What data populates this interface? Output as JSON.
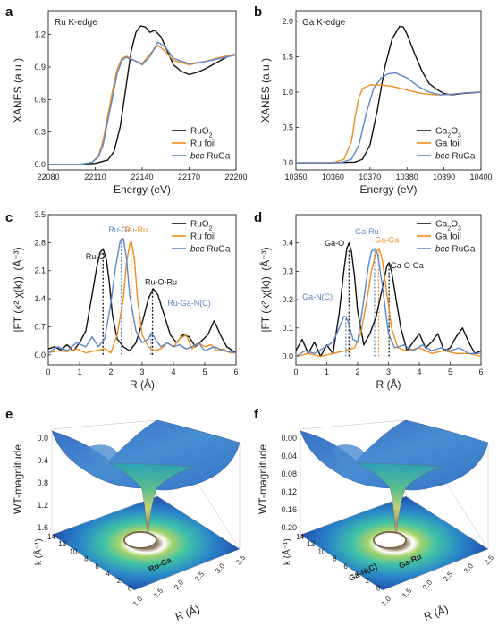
{
  "panels": {
    "a": "a",
    "b": "b",
    "c": "c",
    "d": "d",
    "e": "e",
    "f": "f"
  },
  "colors": {
    "ref": "#111111",
    "foil": "#f28c1e",
    "rugapos": "#5b86c8"
  },
  "chart_data": [
    {
      "id": "a",
      "type": "line",
      "annotation": "Ru K-edge",
      "xlabel": "Energy (eV)",
      "ylabel": "XANES (a.u.)",
      "xlim": [
        22080,
        22200
      ],
      "ylim": [
        -0.05,
        1.42
      ],
      "xticks": [
        22080,
        22110,
        22140,
        22170,
        22200
      ],
      "yticks": [
        0.0,
        0.3,
        0.6,
        0.9,
        1.2
      ],
      "ytick_labels": [
        "0.0",
        "0.3",
        "0.6",
        "0.9",
        "1.2"
      ],
      "legend": [
        "RuO2",
        "Ru foil",
        "bcc RuGa"
      ],
      "series": [
        {
          "name": "RuO2",
          "color": "ref",
          "x": [
            22080,
            22100,
            22110,
            22118,
            22122,
            22126,
            22130,
            22133,
            22136,
            22139,
            22142,
            22145,
            22148,
            22152,
            22156,
            22160,
            22165,
            22170,
            22175,
            22180,
            22185,
            22190,
            22195,
            22200
          ],
          "y": [
            0.0,
            0.0,
            0.01,
            0.04,
            0.12,
            0.35,
            0.75,
            1.05,
            1.22,
            1.28,
            1.27,
            1.22,
            1.24,
            1.18,
            1.05,
            0.92,
            0.86,
            0.83,
            0.85,
            0.88,
            0.92,
            0.96,
            1.0,
            1.02
          ]
        },
        {
          "name": "Ru foil",
          "color": "foil",
          "x": [
            22080,
            22100,
            22108,
            22112,
            22115,
            22118,
            22121,
            22124,
            22127,
            22130,
            22135,
            22140,
            22145,
            22150,
            22155,
            22160,
            22170,
            22180,
            22190,
            22200
          ],
          "y": [
            0.0,
            0.0,
            0.02,
            0.08,
            0.22,
            0.45,
            0.68,
            0.88,
            0.98,
            1.0,
            0.96,
            0.93,
            1.02,
            1.1,
            1.04,
            0.96,
            0.92,
            0.95,
            0.99,
            1.02
          ]
        },
        {
          "name": "bcc RuGa",
          "color": "rugapos",
          "x": [
            22080,
            22100,
            22108,
            22112,
            22115,
            22118,
            22121,
            22124,
            22127,
            22130,
            22135,
            22140,
            22145,
            22150,
            22155,
            22160,
            22170,
            22180,
            22190,
            22200
          ],
          "y": [
            0.0,
            0.0,
            0.02,
            0.07,
            0.18,
            0.4,
            0.62,
            0.84,
            0.96,
            0.99,
            0.96,
            0.92,
            1.0,
            1.13,
            1.08,
            0.98,
            0.93,
            0.95,
            0.98,
            1.01
          ]
        }
      ]
    },
    {
      "id": "b",
      "type": "line",
      "annotation": "Ga K-edge",
      "xlabel": "Energy (eV)",
      "ylabel": "XANES (a.u.)",
      "xlim": [
        10350,
        10400
      ],
      "ylim": [
        -0.1,
        2.15
      ],
      "xticks": [
        10350,
        10360,
        10370,
        10380,
        10390,
        10400
      ],
      "yticks": [
        0.0,
        0.5,
        1.0,
        1.5,
        2.0
      ],
      "ytick_labels": [
        "0.0",
        "0.5",
        "1.0",
        "1.5",
        "2.0"
      ],
      "legend": [
        "Ga2O3",
        "Ga foil",
        "bcc RuGa"
      ],
      "series": [
        {
          "name": "Ga2O3",
          "color": "ref",
          "x": [
            10350,
            10360,
            10366,
            10368,
            10370,
            10372,
            10374,
            10376,
            10378,
            10379,
            10380,
            10382,
            10384,
            10386,
            10388,
            10390,
            10392,
            10395,
            10400
          ],
          "y": [
            0.0,
            0.0,
            0.01,
            0.05,
            0.25,
            0.75,
            1.35,
            1.75,
            1.93,
            1.92,
            1.82,
            1.55,
            1.3,
            1.12,
            1.04,
            0.98,
            0.96,
            0.98,
            1.0
          ]
        },
        {
          "name": "Ga foil",
          "color": "foil",
          "x": [
            10350,
            10360,
            10363,
            10365,
            10366,
            10367,
            10368,
            10370,
            10373,
            10376,
            10380,
            10384,
            10388,
            10392,
            10396,
            10400
          ],
          "y": [
            0.0,
            0.0,
            0.05,
            0.3,
            0.65,
            0.92,
            1.05,
            1.1,
            1.1,
            1.08,
            1.03,
            0.98,
            0.96,
            0.97,
            0.99,
            1.0
          ]
        },
        {
          "name": "bcc RuGa",
          "color": "rugapos",
          "x": [
            10350,
            10362,
            10365,
            10367,
            10369,
            10371,
            10373,
            10375,
            10377,
            10380,
            10383,
            10386,
            10389,
            10392,
            10396,
            10400
          ],
          "y": [
            0.0,
            0.0,
            0.05,
            0.25,
            0.7,
            1.05,
            1.2,
            1.26,
            1.27,
            1.2,
            1.08,
            1.0,
            0.96,
            0.97,
            0.99,
            1.0
          ]
        }
      ]
    },
    {
      "id": "c",
      "type": "line",
      "xlabel": "R (Å)",
      "ylabel": "|FT (k² χ(k))| (Å⁻³)",
      "xlim": [
        0,
        6
      ],
      "ylim": [
        -0.25,
        3.5
      ],
      "xticks": [
        0,
        1,
        2,
        3,
        4,
        5,
        6
      ],
      "yticks": [
        0.0,
        0.7,
        1.4,
        2.1,
        2.8,
        3.5
      ],
      "ytick_labels": [
        "0.0",
        "0.7",
        "1.4",
        "2.1",
        "2.8",
        "3.5"
      ],
      "legend": [
        "RuO2",
        "Ru foil",
        "bcc RuGa"
      ],
      "vlines": [
        {
          "x": 1.75,
          "color": "ref",
          "y": 2.6
        },
        {
          "x": 2.33,
          "color": "rugapos",
          "y": 2.9
        },
        {
          "x": 2.65,
          "color": "foil",
          "y": 2.85
        },
        {
          "x": 3.33,
          "color": "ref",
          "y": 1.65
        },
        {
          "x": 3.28,
          "color": "rugapos",
          "y": 0.55
        }
      ],
      "annotations": [
        {
          "text": "Ru-O",
          "x": 1.5,
          "y": 2.38,
          "color": "ref"
        },
        {
          "text": "Ru-Ga",
          "x": 2.3,
          "y": 3.05,
          "color": "rugapos"
        },
        {
          "text": "Ru-Ru",
          "x": 2.8,
          "y": 3.05,
          "color": "foil"
        },
        {
          "text": "Ru-O-Ru",
          "x": 3.6,
          "y": 1.75,
          "color": "ref"
        },
        {
          "text": "Ru-Ga-N(C)",
          "x": 4.5,
          "y": 1.22,
          "color": "rugapos"
        }
      ],
      "series": [
        {
          "name": "RuO2",
          "color": "ref",
          "x": [
            0,
            0.2,
            0.4,
            0.6,
            0.8,
            1.0,
            1.2,
            1.4,
            1.55,
            1.65,
            1.75,
            1.85,
            1.95,
            2.05,
            2.2,
            2.4,
            2.6,
            2.8,
            3.0,
            3.2,
            3.35,
            3.5,
            3.7,
            3.9,
            4.1,
            4.3,
            4.5,
            4.7,
            4.9,
            5.1,
            5.3,
            5.5,
            5.7,
            5.9,
            6.0
          ],
          "y": [
            0.15,
            0.2,
            0.12,
            0.25,
            0.1,
            0.3,
            0.6,
            1.5,
            2.2,
            2.55,
            2.65,
            2.4,
            1.8,
            1.0,
            0.4,
            0.2,
            0.1,
            0.3,
            0.8,
            1.4,
            1.65,
            1.5,
            1.0,
            0.5,
            0.3,
            0.5,
            0.45,
            0.2,
            0.35,
            0.5,
            0.85,
            0.5,
            0.2,
            0.1,
            0.05
          ]
        },
        {
          "name": "Ru foil",
          "color": "foil",
          "x": [
            0,
            0.3,
            0.6,
            0.9,
            1.2,
            1.5,
            1.8,
            2.0,
            2.2,
            2.4,
            2.5,
            2.6,
            2.65,
            2.75,
            2.85,
            3.0,
            3.2,
            3.4,
            3.6,
            3.8,
            4.0,
            4.2,
            4.4,
            4.6,
            4.8,
            5.0,
            5.2,
            5.4,
            5.6,
            5.8,
            6.0
          ],
          "y": [
            0.05,
            0.1,
            0.08,
            0.15,
            0.05,
            0.1,
            0.15,
            0.05,
            0.5,
            1.4,
            2.3,
            2.75,
            2.85,
            2.4,
            1.4,
            0.5,
            0.2,
            0.1,
            0.15,
            0.3,
            0.2,
            0.4,
            0.5,
            0.15,
            0.3,
            0.2,
            0.25,
            0.1,
            0.15,
            0.05,
            0.05
          ]
        },
        {
          "name": "bcc RuGa",
          "color": "rugapos",
          "x": [
            0,
            0.3,
            0.6,
            0.9,
            1.2,
            1.4,
            1.6,
            1.8,
            2.0,
            2.15,
            2.3,
            2.4,
            2.5,
            2.6,
            2.8,
            3.0,
            3.2,
            3.3,
            3.45,
            3.6,
            3.8,
            4.0,
            4.2,
            4.4,
            4.6,
            4.8,
            5.0,
            5.3,
            5.6,
            6.0
          ],
          "y": [
            0.05,
            0.2,
            0.1,
            0.3,
            0.2,
            0.45,
            0.2,
            0.4,
            1.3,
            2.2,
            2.85,
            2.9,
            2.4,
            1.5,
            0.6,
            0.3,
            0.4,
            0.55,
            0.35,
            0.2,
            0.3,
            0.2,
            0.25,
            0.15,
            0.2,
            0.3,
            0.1,
            0.2,
            0.1,
            0.05
          ]
        }
      ]
    },
    {
      "id": "d",
      "type": "line",
      "xlabel": "R (Å)",
      "ylabel": "|FT (k² χ(k))| (Å⁻³)",
      "xlim": [
        0,
        6
      ],
      "ylim": [
        -0.03,
        0.5
      ],
      "xticks": [
        0,
        1,
        2,
        3,
        4,
        5,
        6
      ],
      "yticks": [
        0.0,
        0.1,
        0.2,
        0.3,
        0.4
      ],
      "ytick_labels": [
        "0.0",
        "0.1",
        "0.2",
        "0.3",
        "0.4"
      ],
      "legend": [
        "Ga2O3",
        "Ga foil",
        "bcc RuGa"
      ],
      "vlines": [
        {
          "x": 1.62,
          "color": "rugapos",
          "y": 0.14
        },
        {
          "x": 1.72,
          "color": "ref",
          "y": 0.38
        },
        {
          "x": 2.55,
          "color": "rugapos",
          "y": 0.38
        },
        {
          "x": 2.68,
          "color": "foil",
          "y": 0.38
        },
        {
          "x": 3.02,
          "color": "ref",
          "y": 0.33
        }
      ],
      "annotations": [
        {
          "text": "Ga-O",
          "x": 1.25,
          "y": 0.39,
          "color": "ref"
        },
        {
          "text": "Ga-Ru",
          "x": 2.3,
          "y": 0.43,
          "color": "rugapos"
        },
        {
          "text": "Ga-Ga",
          "x": 2.95,
          "y": 0.4,
          "color": "foil"
        },
        {
          "text": "Ga-O-Ga",
          "x": 3.6,
          "y": 0.31,
          "color": "ref"
        },
        {
          "text": "Ga-N(C)",
          "x": 0.7,
          "y": 0.2,
          "color": "rugapos"
        }
      ],
      "series": [
        {
          "name": "Ga2O3",
          "color": "ref",
          "x": [
            0,
            0.2,
            0.4,
            0.6,
            0.8,
            1.0,
            1.2,
            1.4,
            1.55,
            1.65,
            1.72,
            1.8,
            1.9,
            2.0,
            2.2,
            2.4,
            2.6,
            2.8,
            2.95,
            3.02,
            3.1,
            3.25,
            3.4,
            3.6,
            3.8,
            4.0,
            4.2,
            4.4,
            4.6,
            4.8,
            5.0,
            5.2,
            5.4,
            5.6,
            5.8,
            6.0
          ],
          "y": [
            0.02,
            0.06,
            0.01,
            0.05,
            0.0,
            0.04,
            0.01,
            0.15,
            0.3,
            0.38,
            0.4,
            0.37,
            0.28,
            0.16,
            0.04,
            0.08,
            0.14,
            0.24,
            0.32,
            0.33,
            0.3,
            0.2,
            0.1,
            0.02,
            0.05,
            0.08,
            0.03,
            0.05,
            0.08,
            0.02,
            0.03,
            0.07,
            0.1,
            0.05,
            0.01,
            0.02
          ]
        },
        {
          "name": "Ga foil",
          "color": "foil",
          "x": [
            0,
            0.4,
            0.8,
            1.2,
            1.6,
            1.9,
            2.1,
            2.3,
            2.45,
            2.6,
            2.7,
            2.8,
            2.95,
            3.1,
            3.3,
            3.6,
            4.0,
            4.4,
            4.8,
            5.2,
            5.6,
            6.0
          ],
          "y": [
            0.0,
            0.01,
            0.0,
            0.01,
            0.02,
            0.03,
            0.08,
            0.2,
            0.3,
            0.37,
            0.38,
            0.34,
            0.22,
            0.1,
            0.03,
            0.02,
            0.03,
            0.01,
            0.02,
            0.01,
            0.01,
            0.0
          ]
        },
        {
          "name": "bcc RuGa",
          "color": "rugapos",
          "x": [
            0,
            0.3,
            0.6,
            0.9,
            1.2,
            1.4,
            1.55,
            1.62,
            1.7,
            1.85,
            2.0,
            2.2,
            2.35,
            2.45,
            2.55,
            2.65,
            2.8,
            3.0,
            3.2,
            3.5,
            3.8,
            4.1,
            4.4,
            4.7,
            5.0,
            5.3,
            5.6,
            6.0
          ],
          "y": [
            0.0,
            0.02,
            0.01,
            0.03,
            0.05,
            0.1,
            0.14,
            0.14,
            0.12,
            0.06,
            0.05,
            0.2,
            0.32,
            0.37,
            0.38,
            0.36,
            0.25,
            0.08,
            0.03,
            0.04,
            0.02,
            0.04,
            0.02,
            0.03,
            0.02,
            0.03,
            0.01,
            0.01
          ]
        }
      ]
    },
    {
      "id": "e",
      "type": "heatmap",
      "zlabel": "WT-magnitude",
      "zticks": [
        "0.0",
        "0.4",
        "0.8",
        "1.2",
        "1.6"
      ],
      "klabel": "k (Å⁻¹)",
      "kticks": [
        "14",
        "12",
        "10",
        "8",
        "6",
        "4",
        "2",
        "0"
      ],
      "rlabel": "R (Å)",
      "rticks": [
        "1.0",
        "1.5",
        "2.0",
        "2.5",
        "3.0",
        "3.5"
      ],
      "feature_labels": [
        "Ru-Ga"
      ]
    },
    {
      "id": "f",
      "type": "heatmap",
      "zlabel": "WT-magnitude",
      "zticks": [
        "0.00",
        "0.04",
        "0.08",
        "0.12",
        "0.16",
        "0.20"
      ],
      "klabel": "k (Å⁻¹)",
      "kticks": [
        "14",
        "12",
        "10",
        "8",
        "6",
        "4",
        "2",
        "0"
      ],
      "rlabel": "R (Å)",
      "rticks": [
        "1.0",
        "1.5",
        "2.0",
        "2.5",
        "3.0",
        "3.5"
      ],
      "feature_labels": [
        "Ga-N(C)",
        "Ga-Ru"
      ]
    }
  ]
}
